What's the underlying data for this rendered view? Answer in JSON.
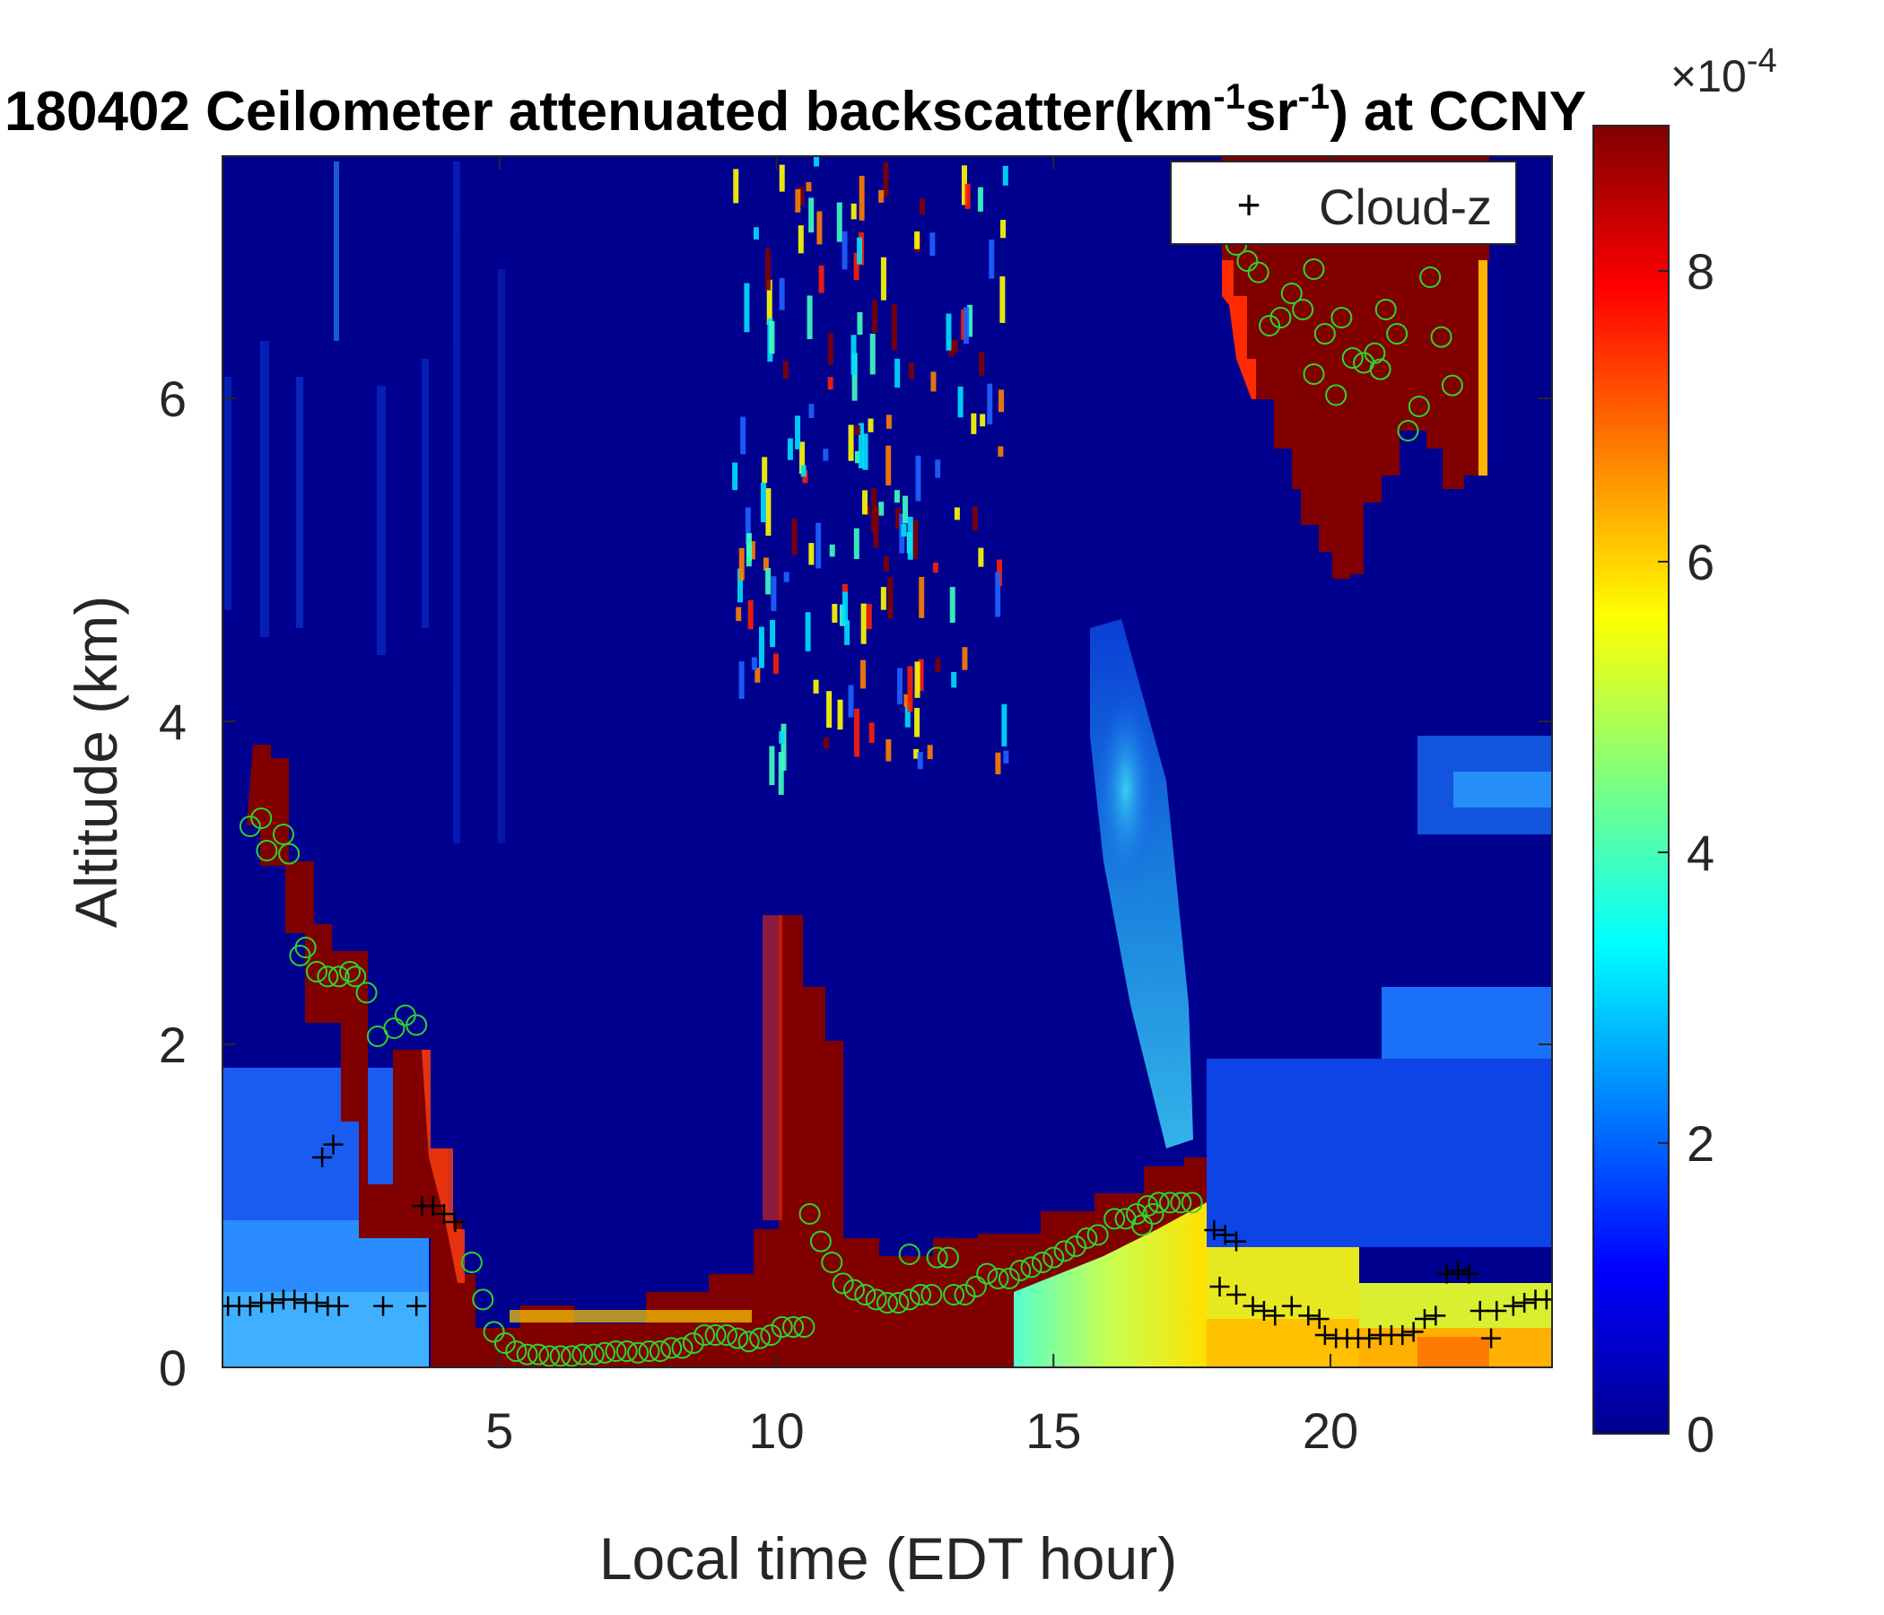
{
  "chart_data": {
    "type": "heatmap",
    "title": {
      "main": "180402 Ceilometer attenuated backscatter(km",
      "sup1": "-1",
      "mid": "sr",
      "sup2": "-1",
      "tail": ") at CCNY"
    },
    "xlabel": "Local time (EDT hour)",
    "ylabel": "Altitude (km)",
    "xlim": [
      0,
      24
    ],
    "ylim": [
      0,
      7.5
    ],
    "xticks": [
      5,
      10,
      15,
      20
    ],
    "yticks": [
      0,
      2,
      4,
      6
    ],
    "colorbar": {
      "colormap": "jet",
      "clim": [
        0,
        9
      ],
      "ticks": [
        0,
        2,
        4,
        6,
        8
      ],
      "exponent_base": "×10",
      "exponent_power": "-4"
    },
    "legend": {
      "position": "top-right",
      "entries": [
        {
          "marker": "+",
          "label": "Cloud-z"
        }
      ]
    },
    "colors": {
      "background_field": "#00008f",
      "saturated": "#800000",
      "marker_cloud": "#000000",
      "marker_pbl": "#2fd32f"
    },
    "cloud_z": [
      [
        0.1,
        0.38
      ],
      [
        0.3,
        0.38
      ],
      [
        0.5,
        0.38
      ],
      [
        0.7,
        0.4
      ],
      [
        0.9,
        0.4
      ],
      [
        1.1,
        0.42
      ],
      [
        1.3,
        0.42
      ],
      [
        1.5,
        0.4
      ],
      [
        1.7,
        0.4
      ],
      [
        1.9,
        0.38
      ],
      [
        2.1,
        0.38
      ],
      [
        1.8,
        1.3
      ],
      [
        2.0,
        1.38
      ],
      [
        2.9,
        0.38
      ],
      [
        3.5,
        0.38
      ],
      [
        3.6,
        1.0
      ],
      [
        3.8,
        1.0
      ],
      [
        4.0,
        0.95
      ],
      [
        4.2,
        0.9
      ],
      [
        17.9,
        0.85
      ],
      [
        18.1,
        0.82
      ],
      [
        18.3,
        0.78
      ],
      [
        18.0,
        0.5
      ],
      [
        18.3,
        0.45
      ],
      [
        18.6,
        0.38
      ],
      [
        18.8,
        0.35
      ],
      [
        19.0,
        0.32
      ],
      [
        19.3,
        0.38
      ],
      [
        19.6,
        0.32
      ],
      [
        19.8,
        0.3
      ],
      [
        19.9,
        0.2
      ],
      [
        20.1,
        0.18
      ],
      [
        20.3,
        0.18
      ],
      [
        20.5,
        0.18
      ],
      [
        20.7,
        0.18
      ],
      [
        20.9,
        0.2
      ],
      [
        21.1,
        0.2
      ],
      [
        21.3,
        0.2
      ],
      [
        21.5,
        0.22
      ],
      [
        21.7,
        0.3
      ],
      [
        21.9,
        0.32
      ],
      [
        22.1,
        0.58
      ],
      [
        22.3,
        0.6
      ],
      [
        22.5,
        0.58
      ],
      [
        22.7,
        0.35
      ],
      [
        23.0,
        0.35
      ],
      [
        23.3,
        0.38
      ],
      [
        23.5,
        0.4
      ],
      [
        23.7,
        0.42
      ],
      [
        23.9,
        0.42
      ],
      [
        22.9,
        0.18
      ]
    ],
    "pbl_height": [
      [
        0.5,
        3.35
      ],
      [
        0.7,
        3.4
      ],
      [
        0.8,
        3.2
      ],
      [
        1.1,
        3.3
      ],
      [
        1.2,
        3.18
      ],
      [
        1.4,
        2.55
      ],
      [
        1.5,
        2.6
      ],
      [
        1.7,
        2.45
      ],
      [
        1.9,
        2.42
      ],
      [
        2.1,
        2.42
      ],
      [
        2.3,
        2.45
      ],
      [
        2.4,
        2.42
      ],
      [
        2.6,
        2.32
      ],
      [
        2.8,
        2.05
      ],
      [
        3.1,
        2.1
      ],
      [
        3.3,
        2.18
      ],
      [
        3.5,
        2.12
      ],
      [
        4.5,
        0.65
      ],
      [
        4.7,
        0.42
      ],
      [
        4.9,
        0.22
      ],
      [
        5.1,
        0.15
      ],
      [
        5.3,
        0.1
      ],
      [
        5.5,
        0.08
      ],
      [
        5.7,
        0.08
      ],
      [
        5.9,
        0.07
      ],
      [
        6.1,
        0.07
      ],
      [
        6.3,
        0.07
      ],
      [
        6.5,
        0.08
      ],
      [
        6.7,
        0.08
      ],
      [
        6.9,
        0.09
      ],
      [
        7.1,
        0.1
      ],
      [
        7.3,
        0.1
      ],
      [
        7.5,
        0.09
      ],
      [
        7.7,
        0.1
      ],
      [
        7.9,
        0.1
      ],
      [
        8.1,
        0.12
      ],
      [
        8.3,
        0.12
      ],
      [
        8.5,
        0.15
      ],
      [
        8.7,
        0.2
      ],
      [
        8.9,
        0.2
      ],
      [
        9.1,
        0.2
      ],
      [
        9.3,
        0.18
      ],
      [
        9.5,
        0.16
      ],
      [
        9.7,
        0.18
      ],
      [
        9.9,
        0.2
      ],
      [
        10.1,
        0.25
      ],
      [
        10.3,
        0.25
      ],
      [
        10.5,
        0.25
      ],
      [
        10.6,
        0.95
      ],
      [
        10.8,
        0.78
      ],
      [
        11.0,
        0.65
      ],
      [
        11.2,
        0.52
      ],
      [
        11.4,
        0.48
      ],
      [
        11.6,
        0.45
      ],
      [
        11.8,
        0.42
      ],
      [
        12.0,
        0.4
      ],
      [
        12.2,
        0.4
      ],
      [
        12.4,
        0.42
      ],
      [
        12.6,
        0.45
      ],
      [
        12.8,
        0.45
      ],
      [
        12.4,
        0.7
      ],
      [
        12.9,
        0.68
      ],
      [
        13.1,
        0.68
      ],
      [
        13.2,
        0.45
      ],
      [
        13.4,
        0.45
      ],
      [
        13.6,
        0.5
      ],
      [
        13.8,
        0.58
      ],
      [
        14.0,
        0.55
      ],
      [
        14.2,
        0.55
      ],
      [
        14.4,
        0.6
      ],
      [
        14.6,
        0.62
      ],
      [
        14.8,
        0.65
      ],
      [
        15.0,
        0.68
      ],
      [
        15.2,
        0.72
      ],
      [
        15.4,
        0.75
      ],
      [
        15.6,
        0.8
      ],
      [
        15.8,
        0.82
      ],
      [
        16.1,
        0.92
      ],
      [
        16.3,
        0.92
      ],
      [
        16.5,
        0.95
      ],
      [
        16.7,
        1.0
      ],
      [
        16.9,
        1.02
      ],
      [
        17.1,
        1.02
      ],
      [
        17.3,
        1.02
      ],
      [
        17.5,
        1.02
      ],
      [
        16.6,
        0.88
      ],
      [
        16.8,
        0.95
      ],
      [
        18.3,
        6.95
      ],
      [
        18.5,
        6.85
      ],
      [
        18.7,
        6.78
      ],
      [
        18.9,
        6.45
      ],
      [
        19.1,
        6.5
      ],
      [
        19.3,
        6.65
      ],
      [
        19.5,
        6.55
      ],
      [
        19.7,
        6.8
      ],
      [
        19.7,
        6.15
      ],
      [
        19.9,
        6.4
      ],
      [
        20.1,
        6.02
      ],
      [
        20.2,
        6.5
      ],
      [
        20.4,
        6.25
      ],
      [
        20.6,
        6.22
      ],
      [
        20.8,
        6.28
      ],
      [
        20.9,
        6.18
      ],
      [
        21.0,
        6.55
      ],
      [
        21.2,
        6.4
      ],
      [
        21.4,
        5.8
      ],
      [
        21.6,
        5.95
      ],
      [
        21.8,
        6.75
      ],
      [
        22.0,
        6.38
      ],
      [
        22.2,
        6.08
      ]
    ]
  }
}
